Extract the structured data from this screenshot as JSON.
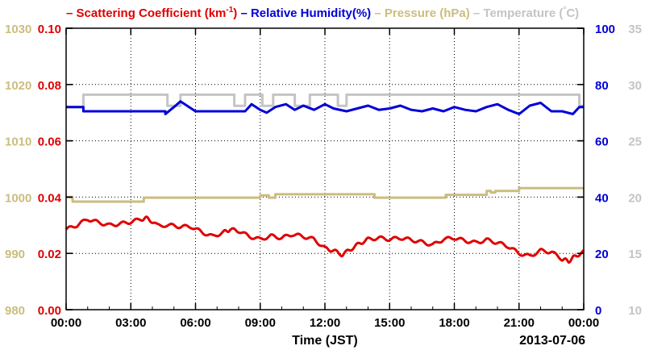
{
  "chart_data": {
    "type": "line",
    "legend": {
      "position": "top",
      "entries": [
        {
          "id": "scatter",
          "prefix": "– ",
          "text": "Scattering Coefficient (km",
          "sup": "-1",
          "suffix": ")",
          "color": "#e00000"
        },
        {
          "id": "humidity",
          "prefix": " – ",
          "text": "Relative Humidity(%)",
          "sup": "",
          "suffix": "",
          "color": "#0000d8"
        },
        {
          "id": "pressure",
          "prefix": " – ",
          "text": "Pressure (hPa)",
          "sup": "",
          "suffix": "",
          "color": "#cbbd7e"
        },
        {
          "id": "temperature",
          "prefix": " – ",
          "text": "Temperature (",
          "sup": "°",
          "suffix": "C)",
          "color": "#c4c4c4"
        }
      ]
    },
    "xlabel": "Time (JST)",
    "date_label": "2013-07-06",
    "x_ticks": [
      "00:00",
      "03:00",
      "06:00",
      "09:00",
      "12:00",
      "15:00",
      "18:00",
      "21:00",
      "00:00"
    ],
    "x_range_hours": [
      0,
      24
    ],
    "grid": true,
    "axes": {
      "pressure": {
        "side": "left-outer",
        "range": [
          980,
          1030
        ],
        "ticks": [
          "980",
          "990",
          "1000",
          "1010",
          "1020",
          "1030"
        ],
        "color": "#cbbd7e"
      },
      "scattering": {
        "side": "left-inner",
        "range": [
          0,
          0.1
        ],
        "ticks": [
          "0.00",
          "0.02",
          "0.04",
          "0.06",
          "0.08",
          "0.10"
        ],
        "color": "#e00000"
      },
      "humidity": {
        "side": "right-inner",
        "range": [
          0,
          100
        ],
        "ticks": [
          "0",
          "20",
          "40",
          "60",
          "80",
          "100"
        ],
        "color": "#0000d8"
      },
      "temperature": {
        "side": "right-outer",
        "range": [
          10,
          35
        ],
        "ticks": [
          "10",
          "15",
          "20",
          "25",
          "30",
          "35"
        ],
        "color": "#c4c4c4"
      }
    },
    "series": [
      {
        "name": "Temperature",
        "axis": "temperature",
        "color": "#c4c4c4",
        "step": true,
        "points": [
          [
            0,
            28
          ],
          [
            0.8,
            28
          ],
          [
            0.8,
            29.1
          ],
          [
            4.7,
            29.1
          ],
          [
            4.7,
            28.1
          ],
          [
            5.3,
            28.1
          ],
          [
            5.3,
            29.1
          ],
          [
            7.8,
            29.1
          ],
          [
            7.8,
            28.1
          ],
          [
            8.3,
            28.1
          ],
          [
            8.3,
            29.1
          ],
          [
            9.1,
            29.1
          ],
          [
            9.1,
            28.1
          ],
          [
            9.6,
            28.1
          ],
          [
            9.6,
            29.1
          ],
          [
            10.6,
            29.1
          ],
          [
            10.6,
            28.1
          ],
          [
            11.3,
            28.1
          ],
          [
            11.3,
            29.1
          ],
          [
            12.6,
            29.1
          ],
          [
            12.6,
            28.1
          ],
          [
            13.0,
            28.1
          ],
          [
            13.0,
            29.1
          ],
          [
            23.8,
            29.1
          ],
          [
            23.8,
            28.1
          ],
          [
            24,
            28.1
          ]
        ]
      },
      {
        "name": "Relative Humidity",
        "axis": "humidity",
        "color": "#0000d8",
        "step": true,
        "points": [
          [
            0,
            72
          ],
          [
            0.8,
            72
          ],
          [
            0.8,
            70.5
          ],
          [
            4.6,
            70.5
          ],
          [
            4.6,
            69.5
          ],
          [
            5.0,
            72
          ],
          [
            5.3,
            74
          ],
          [
            5.7,
            72
          ],
          [
            6.0,
            70.5
          ],
          [
            8.3,
            70.5
          ],
          [
            8.6,
            73
          ],
          [
            9.0,
            71
          ],
          [
            9.3,
            70
          ],
          [
            9.7,
            72
          ],
          [
            10.2,
            73
          ],
          [
            10.6,
            71
          ],
          [
            11.0,
            72.5
          ],
          [
            11.5,
            71
          ],
          [
            12.0,
            73
          ],
          [
            12.4,
            71.5
          ],
          [
            13.0,
            70.5
          ],
          [
            13.5,
            71.5
          ],
          [
            14.0,
            72.5
          ],
          [
            14.5,
            71
          ],
          [
            15.0,
            71.5
          ],
          [
            15.5,
            72.5
          ],
          [
            16.0,
            71
          ],
          [
            16.5,
            70.5
          ],
          [
            17.0,
            71.5
          ],
          [
            17.5,
            70.5
          ],
          [
            18.0,
            72
          ],
          [
            18.5,
            71
          ],
          [
            19.0,
            70.5
          ],
          [
            19.5,
            72
          ],
          [
            20.0,
            73
          ],
          [
            20.5,
            71
          ],
          [
            21.0,
            69.5
          ],
          [
            21.5,
            72.5
          ],
          [
            22.0,
            73.5
          ],
          [
            22.5,
            70.5
          ],
          [
            23.0,
            70.5
          ],
          [
            23.5,
            69.5
          ],
          [
            23.8,
            72
          ],
          [
            24,
            72
          ]
        ]
      },
      {
        "name": "Pressure",
        "axis": "pressure",
        "color": "#cbbd7e",
        "step": true,
        "points": [
          [
            0,
            1000
          ],
          [
            0.3,
            1000
          ],
          [
            0.3,
            999.2
          ],
          [
            3.6,
            999.2
          ],
          [
            3.6,
            999.9
          ],
          [
            9.0,
            999.9
          ],
          [
            9.0,
            1000.3
          ],
          [
            9.4,
            1000.3
          ],
          [
            9.4,
            999.9
          ],
          [
            9.7,
            999.9
          ],
          [
            9.7,
            1000.5
          ],
          [
            14.3,
            1000.5
          ],
          [
            14.3,
            999.9
          ],
          [
            17.6,
            999.9
          ],
          [
            17.6,
            1000.4
          ],
          [
            19.5,
            1000.4
          ],
          [
            19.5,
            1001.1
          ],
          [
            19.7,
            1001.1
          ],
          [
            19.7,
            1000.8
          ],
          [
            19.9,
            1000.8
          ],
          [
            19.9,
            1001.1
          ],
          [
            21.0,
            1001.1
          ],
          [
            21.0,
            1001.6
          ],
          [
            24,
            1001.6
          ]
        ]
      },
      {
        "name": "Scattering Coefficient",
        "axis": "scattering",
        "color": "#e00000",
        "step": false,
        "points": [
          [
            0,
            0.0285
          ],
          [
            0.5,
            0.03
          ],
          [
            1.0,
            0.0322
          ],
          [
            1.5,
            0.031
          ],
          [
            2.0,
            0.03
          ],
          [
            2.5,
            0.0305
          ],
          [
            3.0,
            0.0312
          ],
          [
            3.5,
            0.0322
          ],
          [
            3.8,
            0.0325
          ],
          [
            4.2,
            0.03
          ],
          [
            4.8,
            0.03
          ],
          [
            5.3,
            0.0295
          ],
          [
            5.8,
            0.0295
          ],
          [
            6.3,
            0.0275
          ],
          [
            6.8,
            0.026
          ],
          [
            7.3,
            0.0275
          ],
          [
            7.6,
            0.0285
          ],
          [
            8.0,
            0.028
          ],
          [
            8.5,
            0.026
          ],
          [
            9.0,
            0.025
          ],
          [
            9.5,
            0.0262
          ],
          [
            10.0,
            0.0255
          ],
          [
            10.5,
            0.0268
          ],
          [
            11.0,
            0.026
          ],
          [
            11.5,
            0.025
          ],
          [
            12.0,
            0.0218
          ],
          [
            12.4,
            0.021
          ],
          [
            12.8,
            0.0195
          ],
          [
            13.2,
            0.0215
          ],
          [
            13.6,
            0.0235
          ],
          [
            14.0,
            0.025
          ],
          [
            14.5,
            0.0255
          ],
          [
            15.0,
            0.025
          ],
          [
            15.5,
            0.0255
          ],
          [
            16.0,
            0.0248
          ],
          [
            16.5,
            0.024
          ],
          [
            17.0,
            0.023
          ],
          [
            17.5,
            0.025
          ],
          [
            18.0,
            0.0255
          ],
          [
            18.5,
            0.0245
          ],
          [
            19.0,
            0.0238
          ],
          [
            19.5,
            0.0248
          ],
          [
            20.0,
            0.0238
          ],
          [
            20.5,
            0.0225
          ],
          [
            21.0,
            0.02
          ],
          [
            21.5,
            0.019
          ],
          [
            22.0,
            0.021
          ],
          [
            22.5,
            0.0205
          ],
          [
            23.0,
            0.018
          ],
          [
            23.3,
            0.0172
          ],
          [
            23.6,
            0.019
          ],
          [
            24,
            0.0205
          ]
        ]
      }
    ]
  }
}
